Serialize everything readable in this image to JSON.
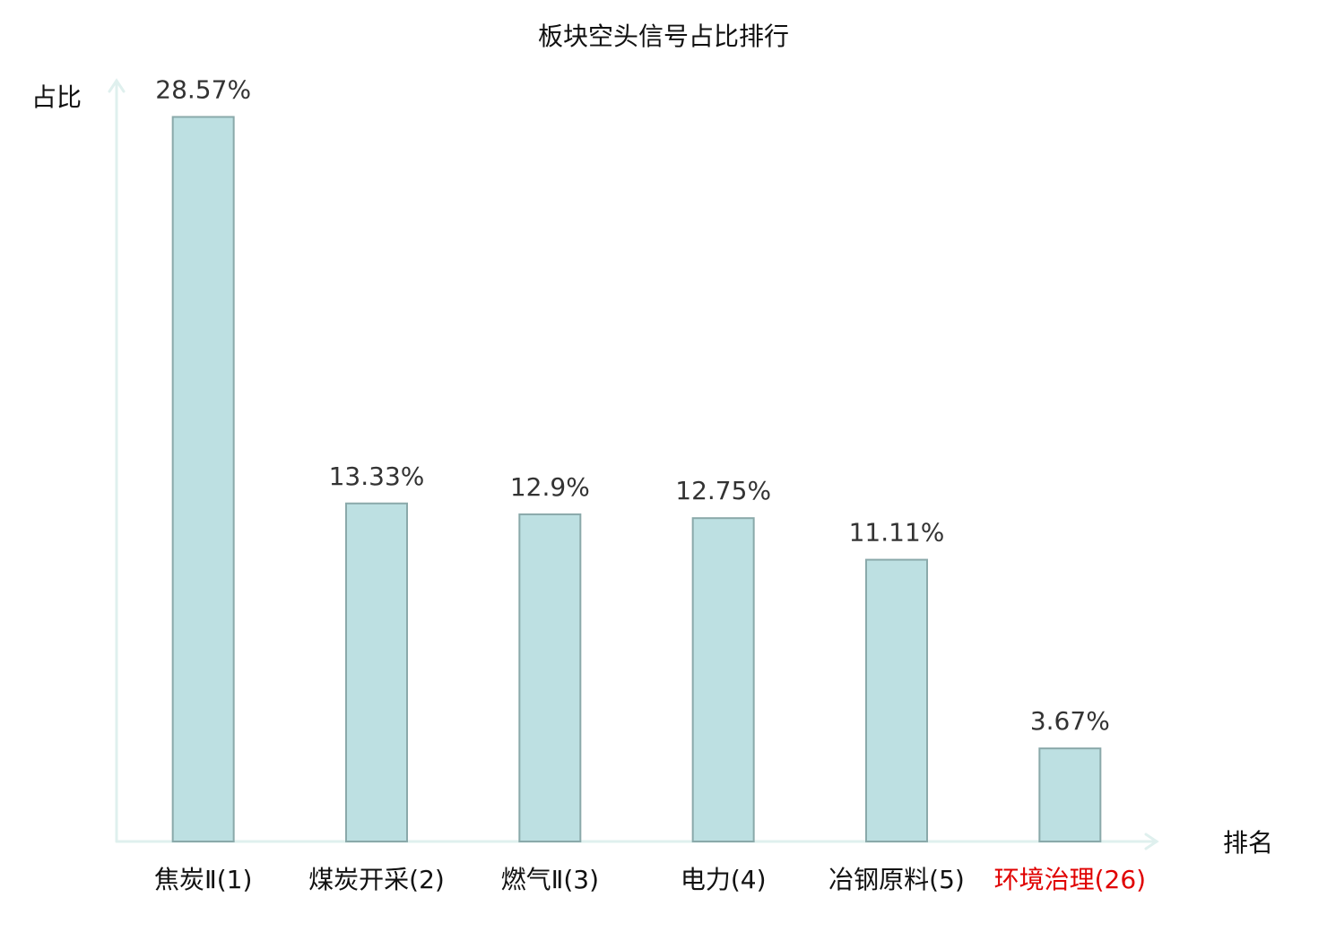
{
  "chart_data": {
    "type": "bar",
    "title": "板块空头信号占比排行",
    "y_label": "占比",
    "x_label": "排名",
    "categories": [
      "焦炭Ⅱ(1)",
      "煤炭开采(2)",
      "燃气Ⅱ(3)",
      "电力(4)",
      "冶钢原料(5)",
      "环境治理(26)"
    ],
    "category_colors": [
      "#111111",
      "#111111",
      "#111111",
      "#111111",
      "#111111",
      "#e00000"
    ],
    "values": [
      28.57,
      13.33,
      12.9,
      12.75,
      11.11,
      3.67
    ],
    "value_labels": [
      "28.57%",
      "13.33%",
      "12.9%",
      "12.75%",
      "11.11%",
      "3.67%"
    ],
    "color": "#bde0e2",
    "edge_color": "#8aa9aa",
    "axis_color": "#dff0ee",
    "ylim": [
      0,
      30
    ]
  }
}
